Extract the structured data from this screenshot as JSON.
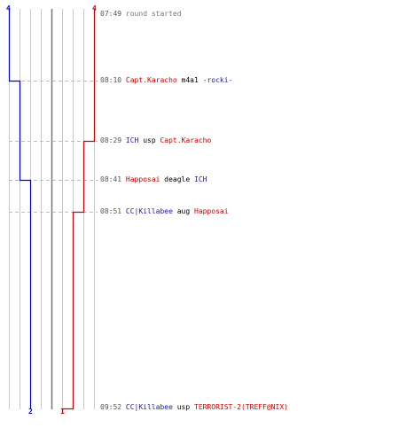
{
  "teams": {
    "blue": {
      "color": "#0000cc",
      "start_count": "4",
      "end_count": "2"
    },
    "red": {
      "color": "#cc0000",
      "start_count": "4",
      "end_count": "1"
    }
  },
  "events": [
    {
      "time": "07:49",
      "text": "round started"
    },
    {
      "time": "08:10",
      "actor": "Capt.Karacho",
      "weapon": "m4a1",
      "victim": "-rocki-"
    },
    {
      "time": "08:29",
      "actor": "ICH",
      "weapon": "usp",
      "victim": "Capt.Karacho"
    },
    {
      "time": "08:41",
      "actor": "Happosai",
      "weapon": "deagle",
      "victim": "ICH"
    },
    {
      "time": "08:51",
      "actor": "CC|Killabee",
      "weapon": "aug",
      "victim": "Happosai"
    },
    {
      "time": "09:52",
      "actor": "CC|Killabee",
      "weapon": "usp",
      "victim": "TERRORIST-2(TREFF@NIX)"
    }
  ]
}
